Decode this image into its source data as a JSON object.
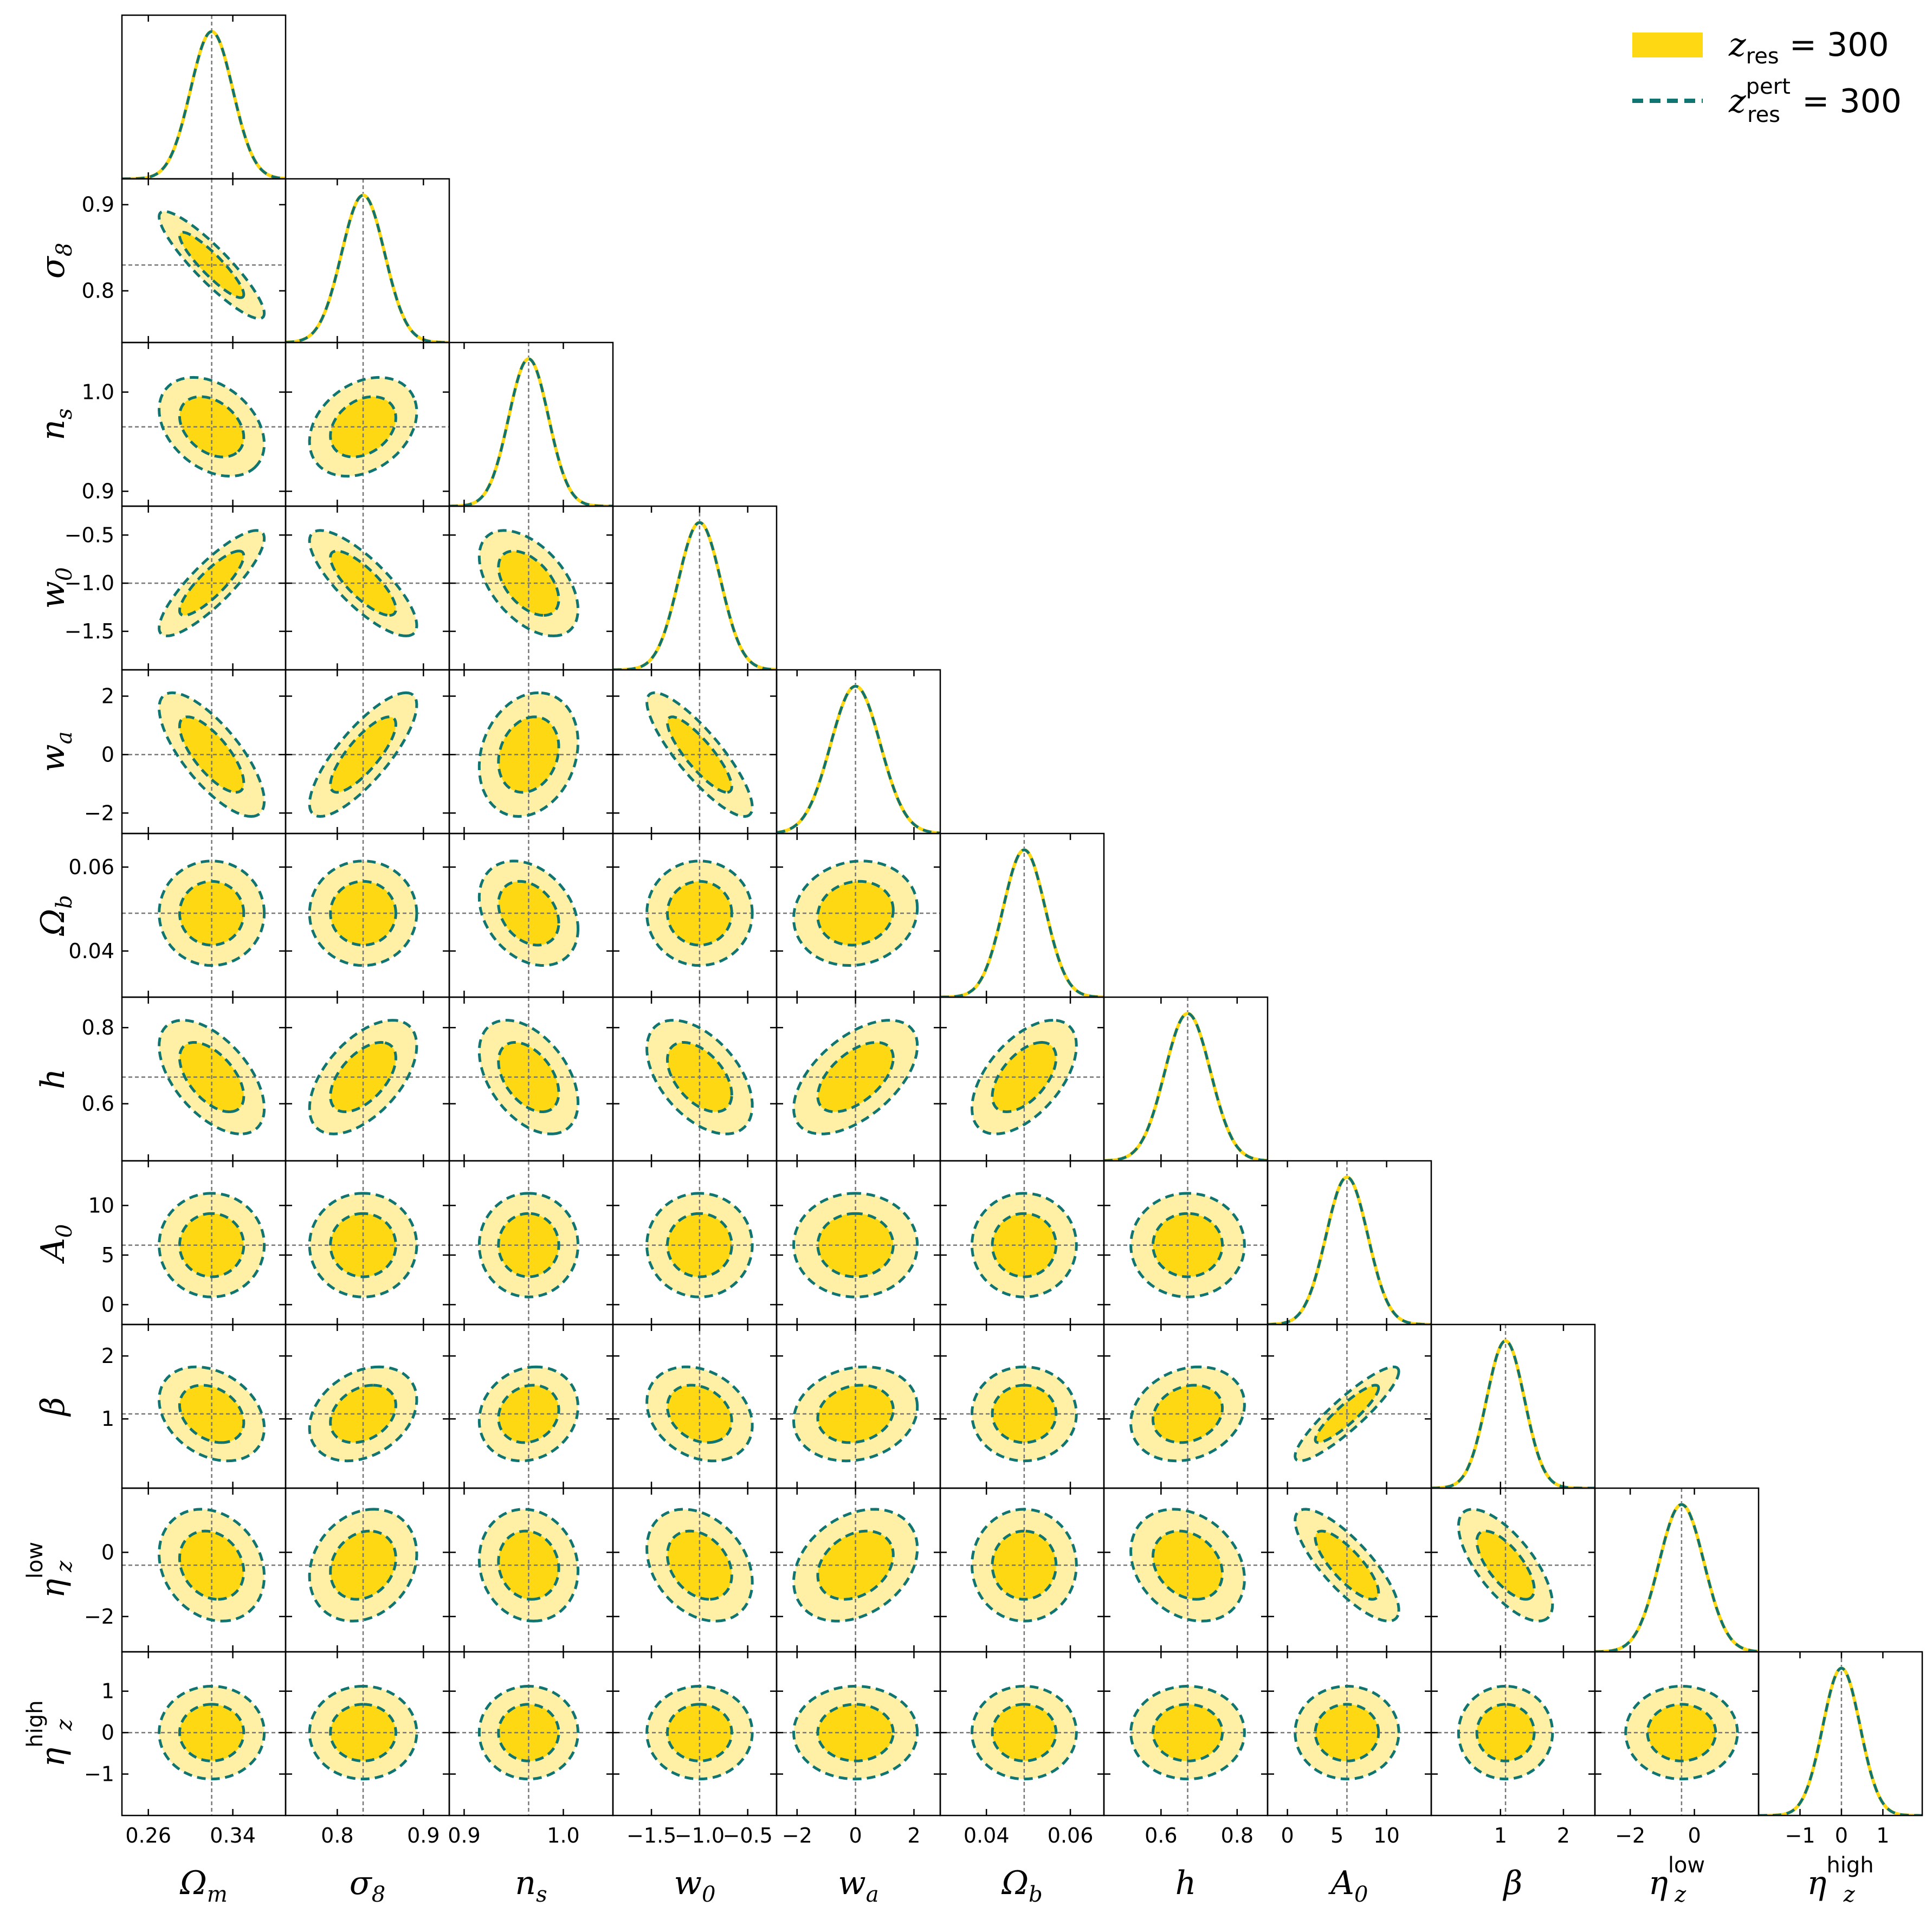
{
  "chart_data": {
    "type": "corner",
    "legend_position": "top-right",
    "legend": [
      {
        "name": "z_res = 300",
        "style": "filled",
        "colors": {
          "inner": "#FFD814",
          "outer": "#FFF0A5"
        }
      },
      {
        "name": "z_res^pert = 300",
        "style": "dashed",
        "color": "#107570"
      }
    ],
    "legend_text": {
      "first": {
        "var": "z",
        "sub": "res",
        "rest": " = 300"
      },
      "second": {
        "var": "z",
        "sub": "res",
        "sup": "pert",
        "rest": " = 300"
      }
    },
    "parameters": [
      {
        "name": "Ω_m",
        "label": {
          "main": "Ω",
          "sub": "m",
          "sup": ""
        },
        "fiducial": 0.32,
        "sigma": 0.02,
        "range": [
          0.235,
          0.39
        ],
        "ticks": [
          0.26,
          0.34
        ],
        "tick_labels": [
          "0.26",
          "0.34"
        ]
      },
      {
        "name": "σ_8",
        "label": {
          "main": "σ",
          "sub": "8",
          "sup": ""
        },
        "fiducial": 0.83,
        "sigma": 0.025,
        "range": [
          0.74,
          0.93
        ],
        "ticks": [
          0.8,
          0.9
        ],
        "tick_labels": [
          "0.8",
          "0.9"
        ]
      },
      {
        "name": "n_s",
        "label": {
          "main": "n",
          "sub": "s",
          "sup": ""
        },
        "fiducial": 0.965,
        "sigma": 0.02,
        "range": [
          0.885,
          1.05
        ],
        "ticks": [
          0.9,
          1.0
        ],
        "tick_labels": [
          "0.9",
          "1.0"
        ]
      },
      {
        "name": "w_0",
        "label": {
          "main": "w",
          "sub": "0",
          "sup": ""
        },
        "fiducial": -1.0,
        "sigma": 0.22,
        "range": [
          -1.9,
          -0.2
        ],
        "ticks": [
          -1.5,
          -1.0,
          -0.5
        ],
        "tick_labels": [
          "−1.5",
          "−1.0",
          "−0.5"
        ]
      },
      {
        "name": "w_a",
        "label": {
          "main": "w",
          "sub": "a",
          "sup": ""
        },
        "fiducial": 0.0,
        "sigma": 0.85,
        "range": [
          -2.7,
          2.9
        ],
        "ticks": [
          -2,
          0,
          2
        ],
        "tick_labels": [
          "−2",
          "0",
          "2"
        ]
      },
      {
        "name": "Ω_b",
        "label": {
          "main": "Ω",
          "sub": "b",
          "sup": ""
        },
        "fiducial": 0.049,
        "sigma": 0.005,
        "range": [
          0.029,
          0.068
        ],
        "ticks": [
          0.04,
          0.06
        ],
        "tick_labels": [
          "0.04",
          "0.06"
        ]
      },
      {
        "name": "h",
        "label": {
          "main": "h",
          "sub": "",
          "sup": ""
        },
        "fiducial": 0.67,
        "sigma": 0.06,
        "range": [
          0.45,
          0.88
        ],
        "ticks": [
          0.6,
          0.8
        ],
        "tick_labels": [
          "0.6",
          "0.8"
        ]
      },
      {
        "name": "A_0",
        "label": {
          "main": "A",
          "sub": "0",
          "sup": ""
        },
        "fiducial": 6.0,
        "sigma": 2.1,
        "range": [
          -2.0,
          14.5
        ],
        "ticks": [
          0,
          5,
          10
        ],
        "tick_labels": [
          "0",
          "5",
          "10"
        ]
      },
      {
        "name": "β",
        "label": {
          "main": "β",
          "sub": "",
          "sup": ""
        },
        "fiducial": 1.08,
        "sigma": 0.3,
        "range": [
          -0.1,
          2.5
        ],
        "ticks": [
          1,
          2
        ],
        "tick_labels": [
          "1",
          "2"
        ]
      },
      {
        "name": "η_z^low",
        "label": {
          "main": "η",
          "sub": "z",
          "sup": "low"
        },
        "fiducial": -0.4,
        "sigma": 0.7,
        "range": [
          -3.1,
          2.0
        ],
        "ticks": [
          -2,
          0
        ],
        "tick_labels": [
          "−2",
          "0"
        ]
      },
      {
        "name": "η_z^high",
        "label": {
          "main": "η",
          "sub": "z",
          "sup": "high"
        },
        "fiducial": 0.0,
        "sigma": 0.45,
        "range": [
          -2.0,
          1.95
        ],
        "ticks": [
          -1,
          0,
          1
        ],
        "tick_labels": [
          "−1",
          "0",
          "1"
        ]
      }
    ],
    "correlations": [
      [
        0,
        1,
        -0.9
      ],
      [
        0,
        2,
        -0.35
      ],
      [
        0,
        3,
        0.85
      ],
      [
        0,
        4,
        -0.75
      ],
      [
        0,
        6,
        -0.55
      ],
      [
        0,
        8,
        -0.3
      ],
      [
        0,
        9,
        -0.2
      ],
      [
        1,
        2,
        0.3
      ],
      [
        1,
        3,
        -0.8
      ],
      [
        1,
        4,
        0.8
      ],
      [
        1,
        6,
        0.55
      ],
      [
        1,
        8,
        0.3
      ],
      [
        1,
        9,
        0.2
      ],
      [
        2,
        3,
        -0.5
      ],
      [
        2,
        4,
        0.2
      ],
      [
        2,
        5,
        -0.3
      ],
      [
        2,
        6,
        -0.45
      ],
      [
        2,
        8,
        0.15
      ],
      [
        2,
        9,
        -0.1
      ],
      [
        3,
        4,
        -0.85
      ],
      [
        3,
        6,
        -0.5
      ],
      [
        3,
        8,
        -0.25
      ],
      [
        3,
        9,
        -0.3
      ],
      [
        4,
        5,
        0.1
      ],
      [
        4,
        6,
        0.55
      ],
      [
        4,
        8,
        0.15
      ],
      [
        4,
        9,
        0.3
      ],
      [
        5,
        6,
        0.55
      ],
      [
        6,
        8,
        0.2
      ],
      [
        6,
        9,
        -0.25
      ],
      [
        7,
        8,
        0.9
      ],
      [
        7,
        9,
        -0.8
      ],
      [
        8,
        9,
        -0.7
      ]
    ]
  }
}
